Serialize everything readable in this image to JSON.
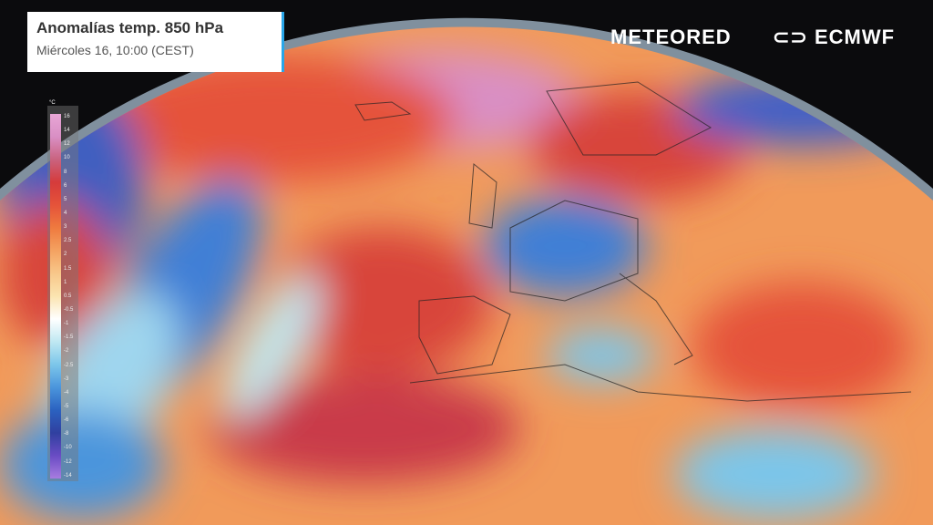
{
  "title": "Anomalías temp. 850 hPa",
  "subtitle": "Miércoles 16, 10:00 (CEST)",
  "brands": [
    "METEORED",
    "ECMWF"
  ],
  "legend": {
    "unit": "°C",
    "labels": [
      "16",
      "14",
      "12",
      "10",
      "8",
      "6",
      "5",
      "4",
      "3",
      "2.5",
      "2",
      "1.5",
      "1",
      "0.5",
      "-0.5",
      "-1",
      "-1.5",
      "-2",
      "-2.5",
      "-3",
      "-4",
      "-5",
      "-6",
      "-8",
      "-10",
      "-12",
      "-14"
    ],
    "colors": [
      "#e8a6d6",
      "#d98fc4",
      "#c9637f",
      "#d53b3b",
      "#e5533a",
      "#ef7a3f",
      "#f4a261",
      "#f8c78a",
      "#fbe4b0",
      "#ffffff",
      "#bfe8f2",
      "#7cc6ea",
      "#4b95dc",
      "#2b62c0",
      "#3040a0",
      "#6a4cc4",
      "#a77ce0"
    ]
  },
  "map": {
    "warm_color": "#e5533a",
    "cold_color": "#3f7fd6"
  }
}
